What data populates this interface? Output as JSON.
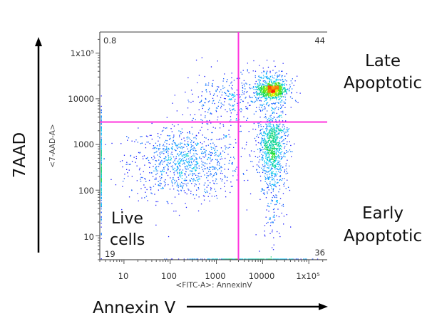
{
  "chart_data": {
    "type": "scatter",
    "subtype": "flow-cytometry-density-dot-plot",
    "xlabel": "<FITC-A>: AnnexinV",
    "ylabel": "<7-AAD-A>",
    "outer_xlabel": "Annexin V",
    "outer_ylabel": "7AAD",
    "x_scale": "log",
    "y_scale": "log",
    "xlim": [
      3,
      250000
    ],
    "ylim": [
      3,
      290000
    ],
    "x_ticks": [
      {
        "value": 10,
        "label": "10"
      },
      {
        "value": 100,
        "label": "100"
      },
      {
        "value": 1000,
        "label": "1000"
      },
      {
        "value": 10000,
        "label": "10000"
      },
      {
        "value": 100000,
        "label": "1x10⁵"
      }
    ],
    "y_ticks": [
      {
        "value": 10,
        "label": "10"
      },
      {
        "value": 100,
        "label": "100"
      },
      {
        "value": 1000,
        "label": "1000"
      },
      {
        "value": 10000,
        "label": "10000"
      },
      {
        "value": 100000,
        "label": "1x10⁵"
      }
    ],
    "quadrant_gate": {
      "x": 3000,
      "y": 3100,
      "color": "#ff33dd"
    },
    "quadrant_percentages": {
      "upper_left": "0.8",
      "upper_right": "44",
      "lower_left": "19",
      "lower_right": "36"
    },
    "populations": [
      {
        "x_center": 200,
        "y_center": 400,
        "x_spread_decades": 0.6,
        "y_spread_decades": 0.4,
        "relative_count": 0.3
      },
      {
        "x_center": 16000,
        "y_center": 1000,
        "x_spread_decades": 0.15,
        "y_spread_decades": 0.35,
        "relative_count": 0.3
      },
      {
        "x_center": 16000,
        "y_center": 16000,
        "x_spread_decades": 0.14,
        "y_spread_decades": 0.08,
        "relative_count": 0.3
      },
      {
        "x_center": 2000,
        "y_center": 10000,
        "x_spread_decades": 0.5,
        "y_spread_decades": 0.3,
        "relative_count": 0.1
      }
    ],
    "colormap": [
      "#1a1aff",
      "#00c8ff",
      "#20e020",
      "#f0f000",
      "#ff1a00"
    ],
    "grid": false
  },
  "annotations": {
    "late_line1": "Late",
    "late_line2": "Apoptotic",
    "early_line1": "Early",
    "early_line2": "Apoptotic",
    "live_line1": "Live",
    "live_line2": "cells"
  }
}
